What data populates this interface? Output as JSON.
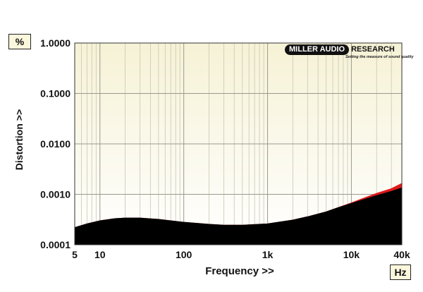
{
  "chart_data": {
    "type": "area",
    "title": "",
    "xlabel": "Frequency >>",
    "ylabel": "Distortion >>",
    "x_unit": "Hz",
    "y_unit": "%",
    "x_scale": "log",
    "y_scale": "log",
    "xlim": [
      5,
      40000
    ],
    "ylim": [
      0.0001,
      1.0
    ],
    "grid": true,
    "x_ticks": [
      {
        "value": 5,
        "label": "5"
      },
      {
        "value": 10,
        "label": "10"
      },
      {
        "value": 100,
        "label": "100"
      },
      {
        "value": 1000,
        "label": "1k"
      },
      {
        "value": 10000,
        "label": "10k"
      },
      {
        "value": 40000,
        "label": "40k"
      }
    ],
    "y_ticks": [
      {
        "value": 1.0,
        "label": "1.0000"
      },
      {
        "value": 0.1,
        "label": "0.1000"
      },
      {
        "value": 0.01,
        "label": "0.0100"
      },
      {
        "value": 0.001,
        "label": "0.0010"
      },
      {
        "value": 0.0001,
        "label": "0.0001"
      }
    ],
    "series": [
      {
        "color": "#e01a1a",
        "x": [
          5,
          7,
          10,
          15,
          20,
          30,
          50,
          100,
          200,
          300,
          500,
          1000,
          2000,
          3000,
          5000,
          7000,
          10000,
          15000,
          20000,
          30000,
          40000
        ],
        "y": [
          0.00022,
          0.00026,
          0.0003,
          0.00033,
          0.00034,
          0.00034,
          0.00032,
          0.00028,
          0.000255,
          0.000245,
          0.000245,
          0.00026,
          0.00031,
          0.00036,
          0.00045,
          0.00055,
          0.00068,
          0.00088,
          0.00105,
          0.0013,
          0.00165
        ]
      },
      {
        "color": "#000000",
        "x": [
          5,
          7,
          10,
          15,
          20,
          30,
          50,
          100,
          200,
          300,
          500,
          1000,
          2000,
          3000,
          5000,
          7000,
          10000,
          15000,
          20000,
          30000,
          40000
        ],
        "y": [
          0.00022,
          0.00026,
          0.0003,
          0.00033,
          0.00034,
          0.00034,
          0.00032,
          0.00028,
          0.000255,
          0.000245,
          0.000245,
          0.00026,
          0.00031,
          0.00036,
          0.00045,
          0.00055,
          0.00066,
          0.00082,
          0.00095,
          0.00115,
          0.00135
        ]
      }
    ]
  },
  "branding": {
    "logo_part1": "MILLER AUDIO",
    "logo_part2": "RESEARCH",
    "tagline": "Setting the measure of sound quality"
  }
}
